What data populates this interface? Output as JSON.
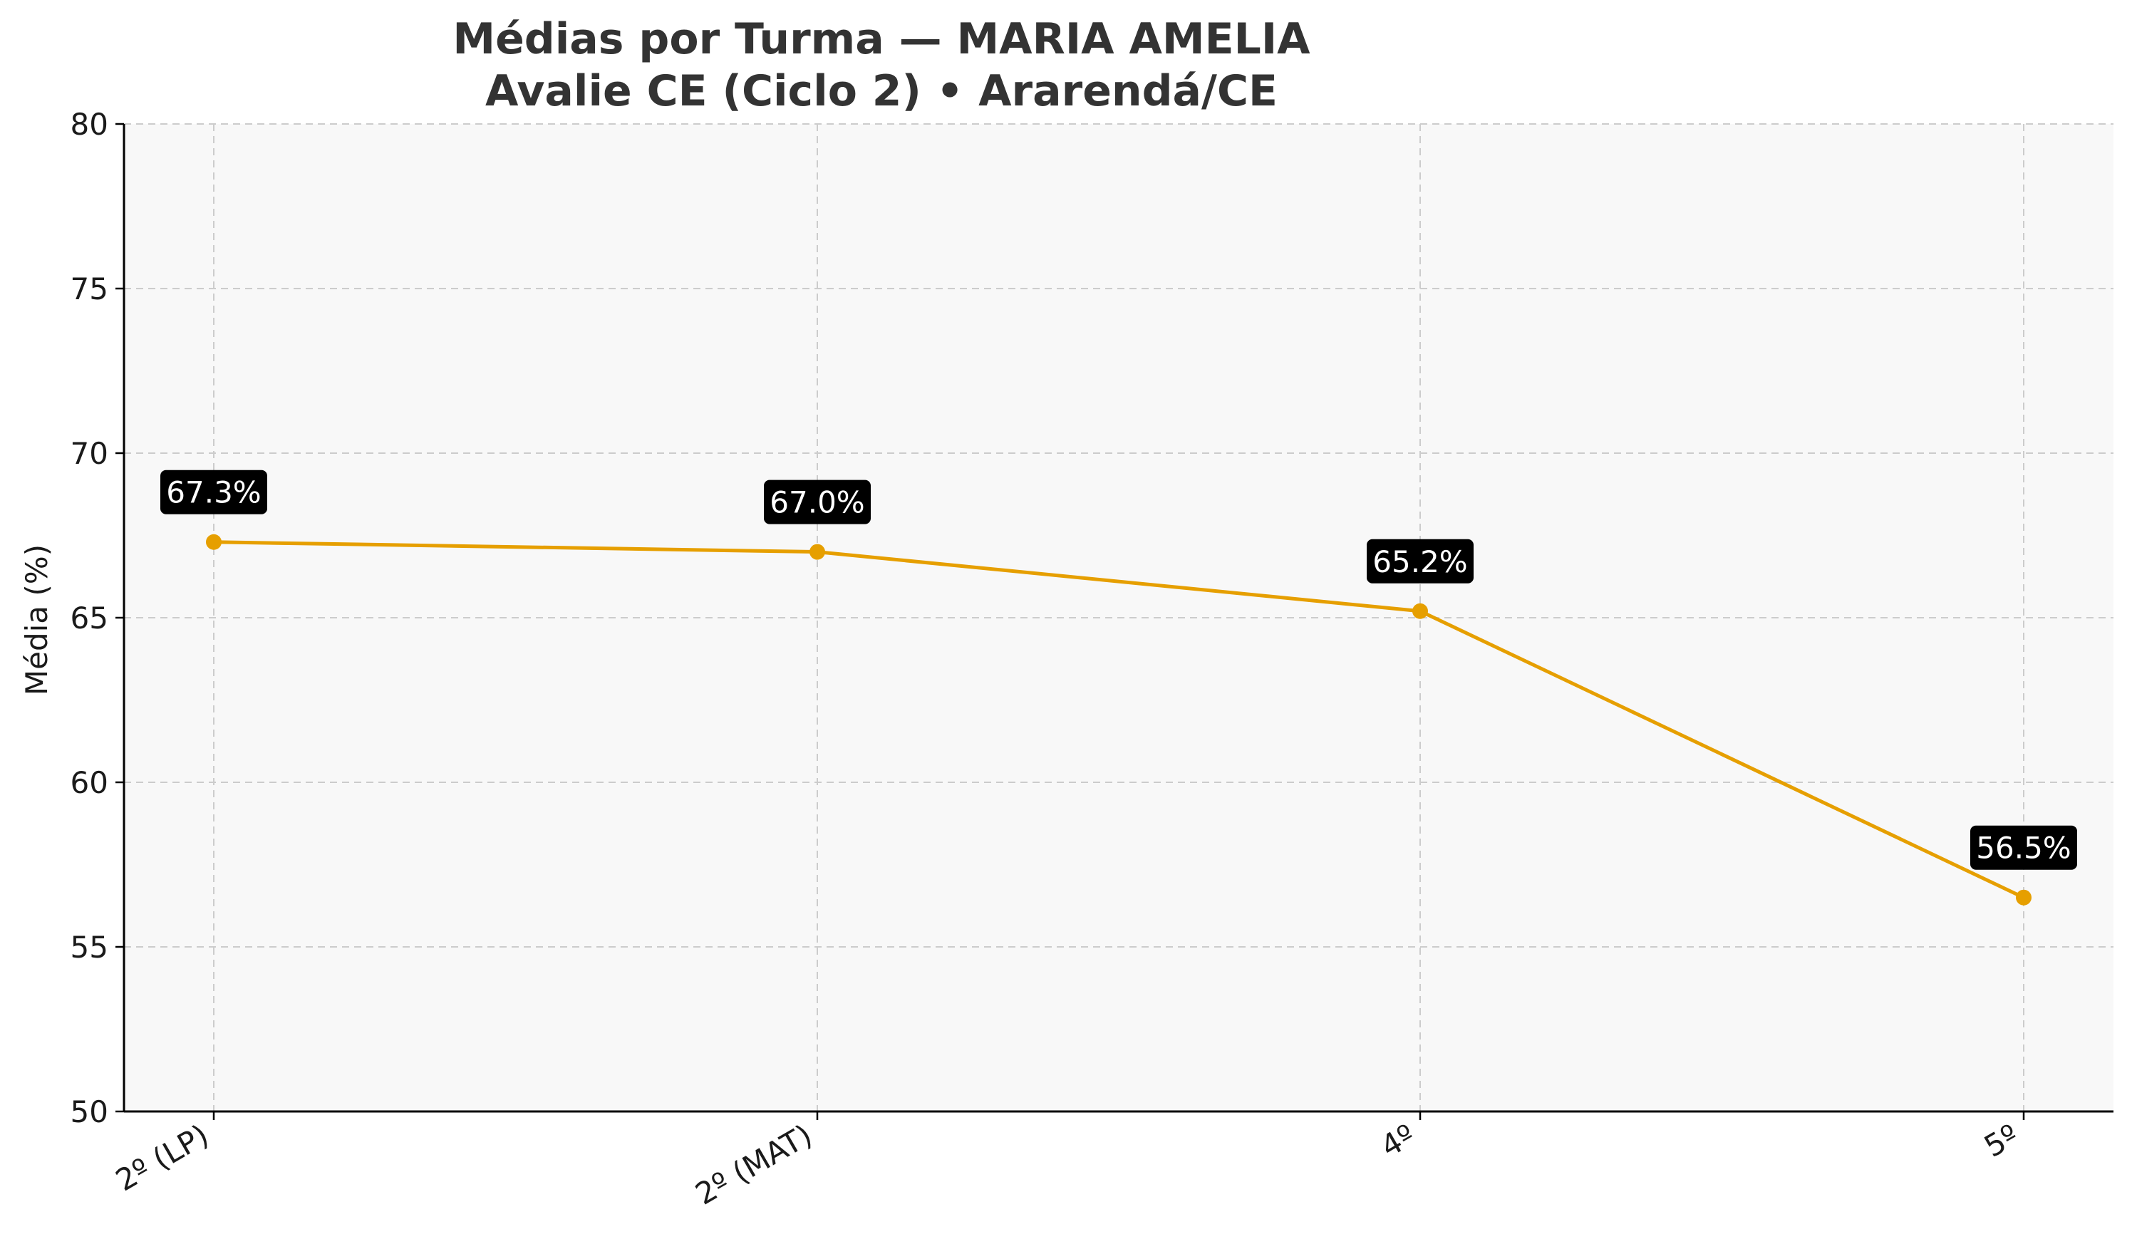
{
  "chart_data": {
    "type": "line",
    "title": "Médias por Turma — MARIA AMELIA",
    "subtitle": "Avalie CE (Ciclo 2) • Ararendá/CE",
    "xlabel": "",
    "ylabel": "Média (%)",
    "categories": [
      "2º (LP)",
      "2º (MAT)",
      "4º",
      "5º"
    ],
    "series": [
      {
        "values": [
          67.3,
          67.0,
          65.2,
          56.5
        ],
        "data_labels": [
          "67.3%",
          "67.0%",
          "65.2%",
          "56.5%"
        ],
        "color": "#e69f00"
      }
    ],
    "ylim": [
      50,
      80
    ],
    "yticks": [
      50,
      55,
      60,
      65,
      70,
      75,
      80
    ],
    "ytick_labels": [
      "50",
      "55",
      "60",
      "65",
      "70",
      "75",
      "80"
    ],
    "grid": true,
    "legend": "none",
    "colors": {
      "background": "#f8f8f8",
      "line": "#e69f00",
      "label_box": "#000000",
      "label_text": "#ffffff",
      "grid": "#cccccc"
    }
  }
}
